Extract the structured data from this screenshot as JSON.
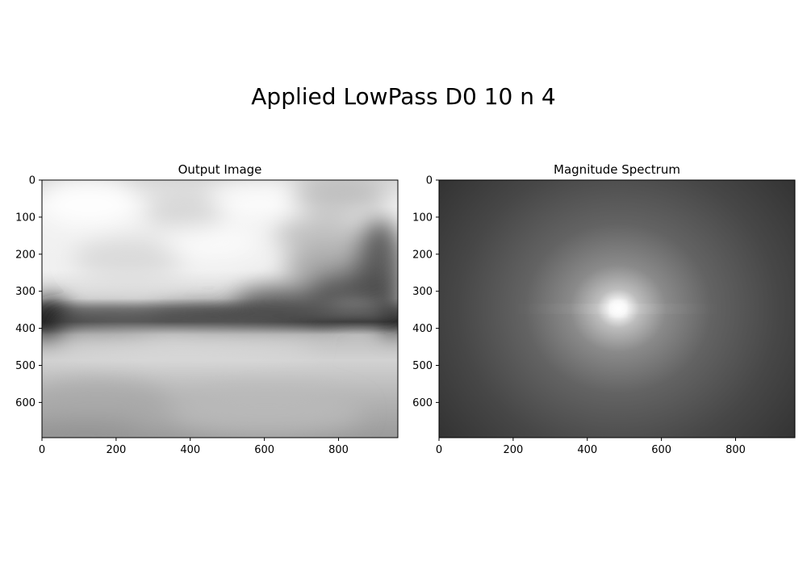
{
  "suptitle": "Applied LowPass D0 10 n 4",
  "chart_data": [
    {
      "type": "heatmap",
      "title": "Output Image",
      "colormap": "gray",
      "xlim": [
        0,
        960
      ],
      "ylim": [
        695,
        0
      ],
      "xticks": [
        0,
        200,
        400,
        600,
        800
      ],
      "yticks": [
        0,
        100,
        200,
        300,
        400,
        500,
        600
      ],
      "content": "heavily low-pass filtered landscape: bright sky in upper area, dark horizon band near y=380, mid-gray field below"
    },
    {
      "type": "heatmap",
      "title": "Magnitude Spectrum",
      "colormap": "gray",
      "xlim": [
        0,
        960
      ],
      "ylim": [
        695,
        0
      ],
      "xticks": [
        0,
        200,
        400,
        600,
        800
      ],
      "yticks": [
        0,
        100,
        200,
        300,
        400,
        500,
        600
      ],
      "content": "centered bright peak at about (480, 347) fading radially to dark edges, faint horizontal streak"
    }
  ]
}
